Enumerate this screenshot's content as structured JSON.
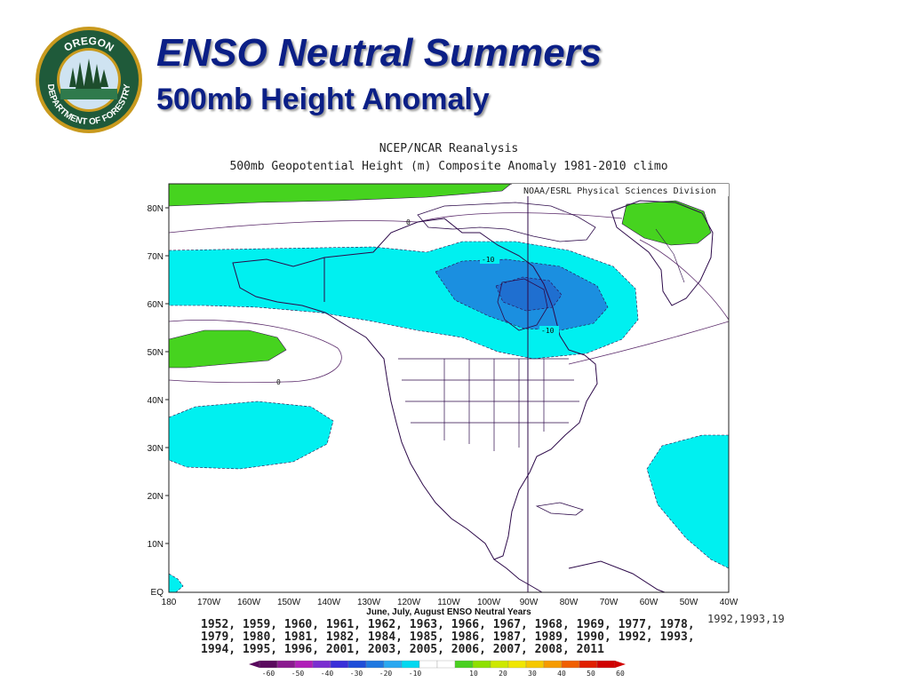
{
  "slide": {
    "title": "ENSO Neutral Summers",
    "subtitle": "500mb Height Anomaly"
  },
  "logo": {
    "top_text": "OREGON",
    "bottom_text": "DEPARTMENT OF FORESTRY",
    "colors": {
      "ring": "#c99a1e",
      "inner": "#1f5a3a",
      "sky": "#cfe3f1",
      "trees": "#1d4d2c"
    }
  },
  "map": {
    "header_line1": "NCEP/NCAR Reanalysis",
    "header_line2": "500mb Geopotential Height (m) Composite Anomaly 1981-2010 climo",
    "credit": "NOAA/ESRL Physical Sciences Division",
    "lat_labels": [
      "80N",
      "70N",
      "60N",
      "50N",
      "40N",
      "30N",
      "20N",
      "10N",
      "EQ"
    ],
    "lon_labels": [
      "180",
      "170W",
      "160W",
      "150W",
      "140W",
      "130W",
      "120W",
      "110W",
      "100W",
      "90W",
      "80W",
      "70W",
      "60W",
      "50W",
      "40W"
    ],
    "contour_labels": [
      "-10",
      "-10",
      "0",
      "0"
    ],
    "footer_label": "June, July, August ENSO Neutral Years",
    "years_lines": [
      "1952, 1959, 1960, 1961, 1962, 1963, 1966, 1967, 1968, 1969, 1977, 1978,",
      "1979, 1980, 1981, 1982, 1984, 1985, 1986, 1987, 1989, 1990, 1992, 1993,",
      "1994, 1995, 1996, 2001, 2003, 2005, 2006, 2007, 2008, 2011"
    ],
    "years_overflow": "1992,1993,19",
    "colorbar_labels": [
      "-60",
      "-50",
      "-40",
      "-30",
      "-20",
      "-10",
      "10",
      "20",
      "30",
      "40",
      "50",
      "60"
    ],
    "colorbar_colors": [
      "#5a0a5e",
      "#8a1a8f",
      "#b01fb8",
      "#7a2fd0",
      "#3a2fd8",
      "#1f4ed8",
      "#1f78e0",
      "#2aa8f0",
      "#00d8f0",
      "#ffffff",
      "#ffffff",
      "#4ad020",
      "#8ee000",
      "#cde800",
      "#f0e600",
      "#f5c800",
      "#f59b00",
      "#f06000",
      "#e02000",
      "#d00000"
    ],
    "fill_colors": {
      "neg10": "#00f0f0",
      "neg20": "#1b8fe0",
      "neg30": "#1f6fd0",
      "pos10": "#46d31f",
      "land_line": "#2d0a4a"
    }
  }
}
